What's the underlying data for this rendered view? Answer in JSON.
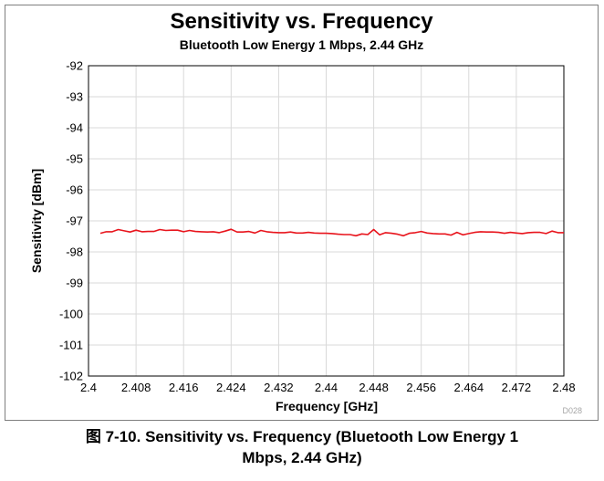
{
  "chart_data": {
    "type": "line",
    "title": "Sensitivity vs. Frequency",
    "subtitle": "Bluetooth Low Energy 1 Mbps, 2.44 GHz",
    "xlabel": "Frequency [GHz]",
    "ylabel": "Sensitivity [dBm]",
    "xlim": [
      2.4,
      2.48
    ],
    "ylim": [
      -102,
      -92
    ],
    "x_ticks": [
      "2.4",
      "2.408",
      "2.416",
      "2.424",
      "2.432",
      "2.44",
      "2.448",
      "2.456",
      "2.464",
      "2.472",
      "2.48"
    ],
    "y_ticks": [
      "-92",
      "-93",
      "-94",
      "-95",
      "-96",
      "-97",
      "-98",
      "-99",
      "-100",
      "-101",
      "-102"
    ],
    "grid": true,
    "series": [
      {
        "color": "#e8141c",
        "x": [
          2.402,
          2.403,
          2.404,
          2.405,
          2.406,
          2.407,
          2.408,
          2.409,
          2.41,
          2.411,
          2.412,
          2.413,
          2.414,
          2.415,
          2.416,
          2.417,
          2.418,
          2.419,
          2.42,
          2.421,
          2.422,
          2.423,
          2.424,
          2.425,
          2.426,
          2.427,
          2.428,
          2.429,
          2.43,
          2.431,
          2.432,
          2.433,
          2.434,
          2.435,
          2.436,
          2.437,
          2.438,
          2.439,
          2.44,
          2.441,
          2.442,
          2.443,
          2.444,
          2.445,
          2.446,
          2.447,
          2.448,
          2.449,
          2.45,
          2.451,
          2.452,
          2.453,
          2.454,
          2.455,
          2.456,
          2.457,
          2.458,
          2.459,
          2.46,
          2.461,
          2.462,
          2.463,
          2.464,
          2.465,
          2.466,
          2.467,
          2.468,
          2.469,
          2.47,
          2.471,
          2.472,
          2.473,
          2.474,
          2.475,
          2.476,
          2.477,
          2.478,
          2.479,
          2.48
        ],
        "values": [
          -97.4,
          -97.35,
          -97.35,
          -97.28,
          -97.32,
          -97.36,
          -97.3,
          -97.35,
          -97.34,
          -97.34,
          -97.28,
          -97.31,
          -97.3,
          -97.3,
          -97.35,
          -97.31,
          -97.34,
          -97.35,
          -97.36,
          -97.35,
          -97.38,
          -97.33,
          -97.27,
          -97.36,
          -97.36,
          -97.34,
          -97.39,
          -97.31,
          -97.35,
          -97.37,
          -97.38,
          -97.38,
          -97.36,
          -97.39,
          -97.39,
          -97.37,
          -97.39,
          -97.4,
          -97.4,
          -97.41,
          -97.43,
          -97.44,
          -97.44,
          -97.48,
          -97.42,
          -97.44,
          -97.28,
          -97.45,
          -97.38,
          -97.4,
          -97.43,
          -97.48,
          -97.4,
          -97.38,
          -97.34,
          -97.39,
          -97.41,
          -97.42,
          -97.42,
          -97.46,
          -97.37,
          -97.45,
          -97.41,
          -97.37,
          -97.35,
          -97.36,
          -97.36,
          -97.37,
          -97.4,
          -97.37,
          -97.39,
          -97.41,
          -97.38,
          -97.37,
          -97.37,
          -97.41,
          -97.33,
          -97.38,
          -97.38
        ]
      }
    ]
  },
  "watermark": "D028",
  "caption": {
    "line1": "图 7-10. Sensitivity vs. Frequency (Bluetooth Low Energy 1",
    "line2": "Mbps, 2.44 GHz)"
  }
}
